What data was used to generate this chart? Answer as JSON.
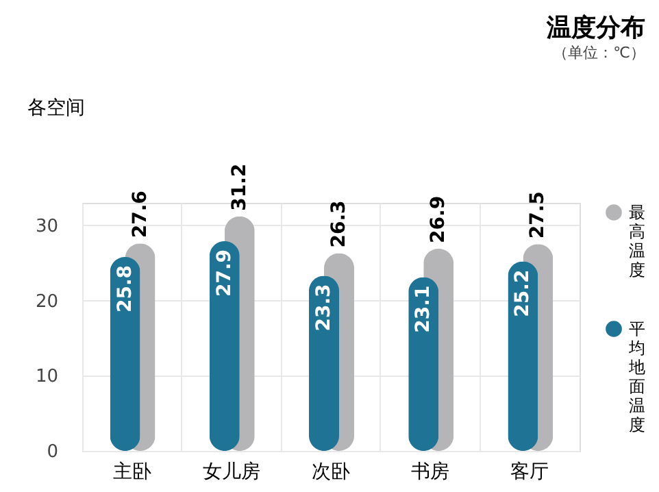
{
  "chart_data": {
    "type": "bar",
    "title": "温度分布",
    "subtitle": "（单位：℃）",
    "annotations": [
      "各空间"
    ],
    "categories": [
      "主卧",
      "女儿房",
      "次卧",
      "书房",
      "客厅"
    ],
    "series": [
      {
        "name": "最高温度",
        "color": "#b5b5b7",
        "values": [
          27.6,
          31.2,
          26.3,
          26.9,
          27.5
        ]
      },
      {
        "name": "平均地面温度",
        "color": "#1f7394",
        "values": [
          25.8,
          27.9,
          23.3,
          23.1,
          25.2
        ]
      }
    ],
    "ylim": [
      0,
      33
    ],
    "yticks": [
      0,
      10,
      20,
      30
    ],
    "grid": true,
    "legend": "right",
    "data_labels": true
  }
}
